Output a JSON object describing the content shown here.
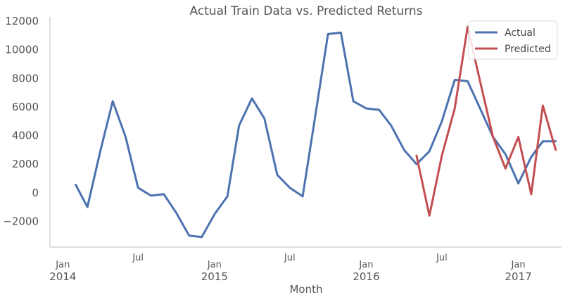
{
  "chart_data": {
    "type": "line",
    "title": "Actual Train Data vs. Predicted Returns",
    "xlabel": "Month",
    "ylabel": "",
    "ylim": [
      -3800,
      12300
    ],
    "yticks": [
      -2000,
      0,
      2000,
      4000,
      6000,
      8000,
      10000,
      12000
    ],
    "ytick_labels": [
      "−2000",
      "0",
      "2000",
      "4000",
      "6000",
      "8000",
      "10000",
      "12000"
    ],
    "xlim": [
      "2013-12-01",
      "2017-04-15"
    ],
    "xticks_major": [
      {
        "date": "2014-01-01",
        "label": "Jan",
        "year": "2014"
      },
      {
        "date": "2015-01-01",
        "label": "Jan",
        "year": "2015"
      },
      {
        "date": "2016-01-01",
        "label": "Jan",
        "year": "2016"
      },
      {
        "date": "2017-01-01",
        "label": "Jan",
        "year": "2017"
      }
    ],
    "xticks_minor": [
      {
        "date": "2014-07-01",
        "label": "Jul"
      },
      {
        "date": "2015-07-01",
        "label": "Jul"
      },
      {
        "date": "2016-07-01",
        "label": "Jul"
      }
    ],
    "grid": false,
    "legend_position": "top-right",
    "series": [
      {
        "name": "Actual",
        "color": "#4c72b0",
        "x": [
          "2014-02-01",
          "2014-03-01",
          "2014-04-01",
          "2014-05-01",
          "2014-06-01",
          "2014-07-01",
          "2014-08-01",
          "2014-09-01",
          "2014-10-01",
          "2014-11-01",
          "2014-12-01",
          "2015-01-01",
          "2015-02-01",
          "2015-03-01",
          "2015-04-01",
          "2015-05-01",
          "2015-06-01",
          "2015-07-01",
          "2015-08-01",
          "2015-09-01",
          "2015-10-01",
          "2015-11-01",
          "2015-12-01",
          "2016-01-01",
          "2016-02-01",
          "2016-03-01",
          "2016-04-01",
          "2016-05-01",
          "2016-06-01",
          "2016-07-01",
          "2016-08-01",
          "2016-09-01",
          "2016-10-01",
          "2016-11-01",
          "2016-12-01",
          "2017-01-01",
          "2017-02-01",
          "2017-03-01",
          "2017-04-01"
        ],
        "y": [
          550,
          -1000,
          2900,
          6400,
          3900,
          350,
          -200,
          -100,
          -1400,
          -3000,
          -3100,
          -1500,
          -250,
          4700,
          6600,
          5200,
          1250,
          350,
          -250,
          5500,
          11100,
          11200,
          6400,
          5900,
          5800,
          4700,
          3000,
          2000,
          2900,
          5000,
          7900,
          7800,
          5900,
          3900,
          2700,
          650,
          2500,
          3600,
          3600
        ]
      },
      {
        "name": "Predicted",
        "color": "#c44e52",
        "x": [
          "2016-05-01",
          "2016-06-01",
          "2016-07-01",
          "2016-08-01",
          "2016-09-01",
          "2016-10-01",
          "2016-11-01",
          "2016-12-01",
          "2017-01-01",
          "2017-02-01",
          "2017-03-01",
          "2017-04-01"
        ],
        "y": [
          2600,
          -1600,
          2600,
          5900,
          11600,
          7800,
          3900,
          1700,
          3900,
          -100,
          6100,
          3000
        ]
      }
    ]
  }
}
